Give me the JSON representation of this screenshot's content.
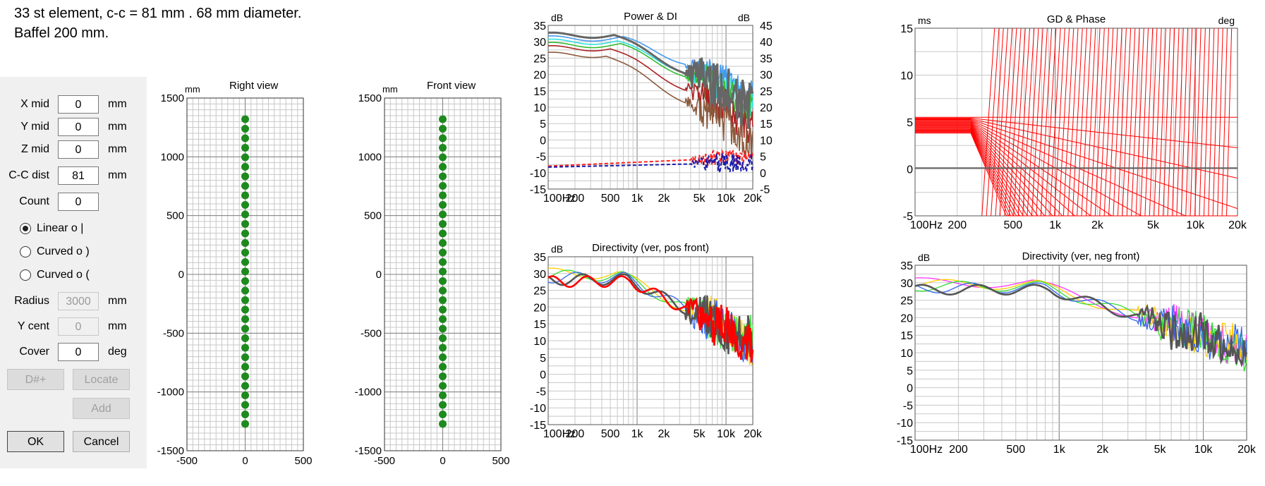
{
  "note": {
    "line1": "33 st element, c-c = 81 mm . 68 mm diameter.",
    "line2": "Baffel 200 mm."
  },
  "dialog": {
    "fields": [
      {
        "label": "X mid",
        "value": "0",
        "unit": "mm"
      },
      {
        "label": "Y mid",
        "value": "0",
        "unit": "mm"
      },
      {
        "label": "Z mid",
        "value": "0",
        "unit": "mm"
      },
      {
        "label": "C-C dist",
        "value": "81",
        "unit": "mm"
      },
      {
        "label": "Count",
        "value": "0",
        "unit": ""
      }
    ],
    "radios": [
      {
        "label": "Linear  o  |",
        "selected": true
      },
      {
        "label": "Curved  o  )",
        "selected": false
      },
      {
        "label": "Curved  o  (",
        "selected": false
      }
    ],
    "disabled_fields": [
      {
        "label": "Radius",
        "value": "3000",
        "unit": "mm"
      },
      {
        "label": "Y cent",
        "value": "0",
        "unit": "mm"
      }
    ],
    "cover": {
      "label": "Cover",
      "value": "0",
      "unit": "deg"
    },
    "buttons": {
      "dsharp": "D#+",
      "locate": "Locate",
      "add": "Add",
      "ok": "OK",
      "cancel": "Cancel"
    }
  },
  "views": [
    {
      "title": "Right view",
      "unit": "mm",
      "y_ticks": [
        "1500",
        "1000",
        "500",
        "0",
        "-500",
        "-1000",
        "-1500"
      ],
      "x_ticks": [
        "-500",
        "0",
        "500"
      ],
      "element_count": 33
    },
    {
      "title": "Front view",
      "unit": "mm",
      "y_ticks": [
        "1500",
        "1000",
        "500",
        "0",
        "-500",
        "-1000",
        "-1500"
      ],
      "x_ticks": [
        "-500",
        "0",
        "500"
      ],
      "element_count": 33
    }
  ],
  "plots": {
    "power": {
      "title": "Power & DI",
      "left_unit": "dB",
      "right_unit": "dB",
      "left_ticks": [
        "35",
        "30",
        "25",
        "20",
        "15",
        "10",
        "5",
        "0",
        "-5",
        "-10",
        "-15"
      ],
      "right_ticks": [
        "45",
        "40",
        "35",
        "30",
        "25",
        "20",
        "15",
        "10",
        "5",
        "0",
        "-5"
      ],
      "x_ticks": [
        "100Hz",
        "200",
        "500",
        "1k",
        "2k",
        "5k",
        "10k",
        "20k"
      ]
    },
    "gd": {
      "title": "GD & Phase",
      "left_unit": "ms",
      "right_unit": "deg",
      "left_ticks": [
        "15",
        "10",
        "5",
        "0",
        "-5"
      ],
      "x_ticks": [
        "100Hz",
        "200",
        "500",
        "1k",
        "2k",
        "5k",
        "10k",
        "20k"
      ]
    },
    "dir_pos": {
      "title": "Directivity (ver, pos front)",
      "left_unit": "dB",
      "left_ticks": [
        "35",
        "30",
        "25",
        "20",
        "15",
        "10",
        "5",
        "0",
        "-5",
        "-10",
        "-15"
      ],
      "x_ticks": [
        "100Hz",
        "200",
        "500",
        "1k",
        "2k",
        "5k",
        "10k",
        "20k"
      ]
    },
    "dir_neg": {
      "title": "Directivity (ver, neg front)",
      "left_unit": "dB",
      "left_ticks": [
        "35",
        "30",
        "25",
        "20",
        "15",
        "10",
        "5",
        "0",
        "-5",
        "-10",
        "-15"
      ],
      "x_ticks": [
        "100Hz",
        "200",
        "500",
        "1k",
        "2k",
        "5k",
        "10k",
        "20k"
      ]
    }
  },
  "colors": {
    "dot": "#1e8a1e",
    "grid": "#c8c8c8",
    "major": "#808080",
    "red": "#ff0000"
  }
}
